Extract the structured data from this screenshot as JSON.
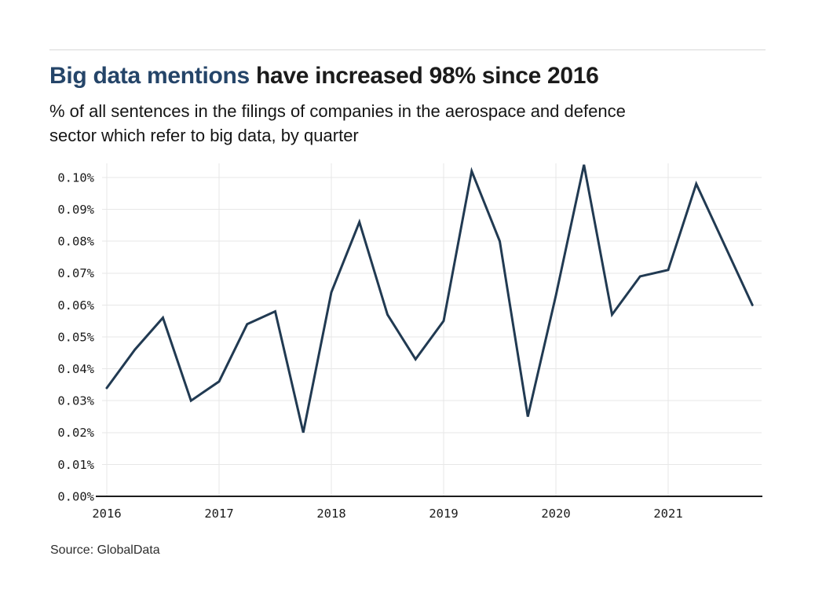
{
  "header": {
    "title_highlight": "Big data mentions",
    "title_rest": " have increased 98% since 2016",
    "subtitle_line1": "% of all sentences in the filings of companies in the aerospace and defence",
    "subtitle_line2": "sector which refer to big data, by quarter"
  },
  "footer": {
    "source": "Source: GlobalData"
  },
  "colors": {
    "accent_navy": "#254569",
    "line": "#213a52",
    "grid": "#e7e7e7",
    "axis": "#1c1c1c",
    "tick_text": "#1a1a1a"
  },
  "chart_data": {
    "type": "line",
    "title": "Big data mentions have increased 98% since 2016",
    "subtitle": "% of all sentences in the filings of companies in the aerospace and defence sector which refer to big data, by quarter",
    "xlabel": "",
    "ylabel": "% of all sentences",
    "ylim": [
      0,
      0.105
    ],
    "grid": true,
    "legend_position": "none",
    "x": [
      "Q1 2016",
      "Q2 2016",
      "Q3 2016",
      "Q4 2016",
      "Q1 2017",
      "Q2 2017",
      "Q3 2017",
      "Q4 2017",
      "Q1 2018",
      "Q2 2018",
      "Q3 2018",
      "Q4 2018",
      "Q1 2019",
      "Q2 2019",
      "Q3 2019",
      "Q4 2019",
      "Q1 2020",
      "Q2 2020",
      "Q3 2020",
      "Q4 2020",
      "Q1 2021",
      "Q2 2021",
      "Q3 2021",
      "Q4 2021"
    ],
    "values": [
      0.034,
      0.046,
      0.056,
      0.03,
      0.036,
      0.054,
      0.058,
      0.02,
      0.064,
      0.086,
      0.057,
      0.043,
      0.055,
      0.102,
      0.08,
      0.025,
      0.063,
      0.104,
      0.057,
      0.069,
      0.071,
      0.098,
      0.079,
      0.06
    ],
    "x_tick_labels": [
      "2016",
      "2017",
      "2018",
      "2019",
      "2020",
      "2021"
    ],
    "y_tick_labels": [
      "0.00%",
      "0.01%",
      "0.02%",
      "0.03%",
      "0.04%",
      "0.05%",
      "0.06%",
      "0.07%",
      "0.08%",
      "0.09%",
      "0.10%"
    ]
  }
}
